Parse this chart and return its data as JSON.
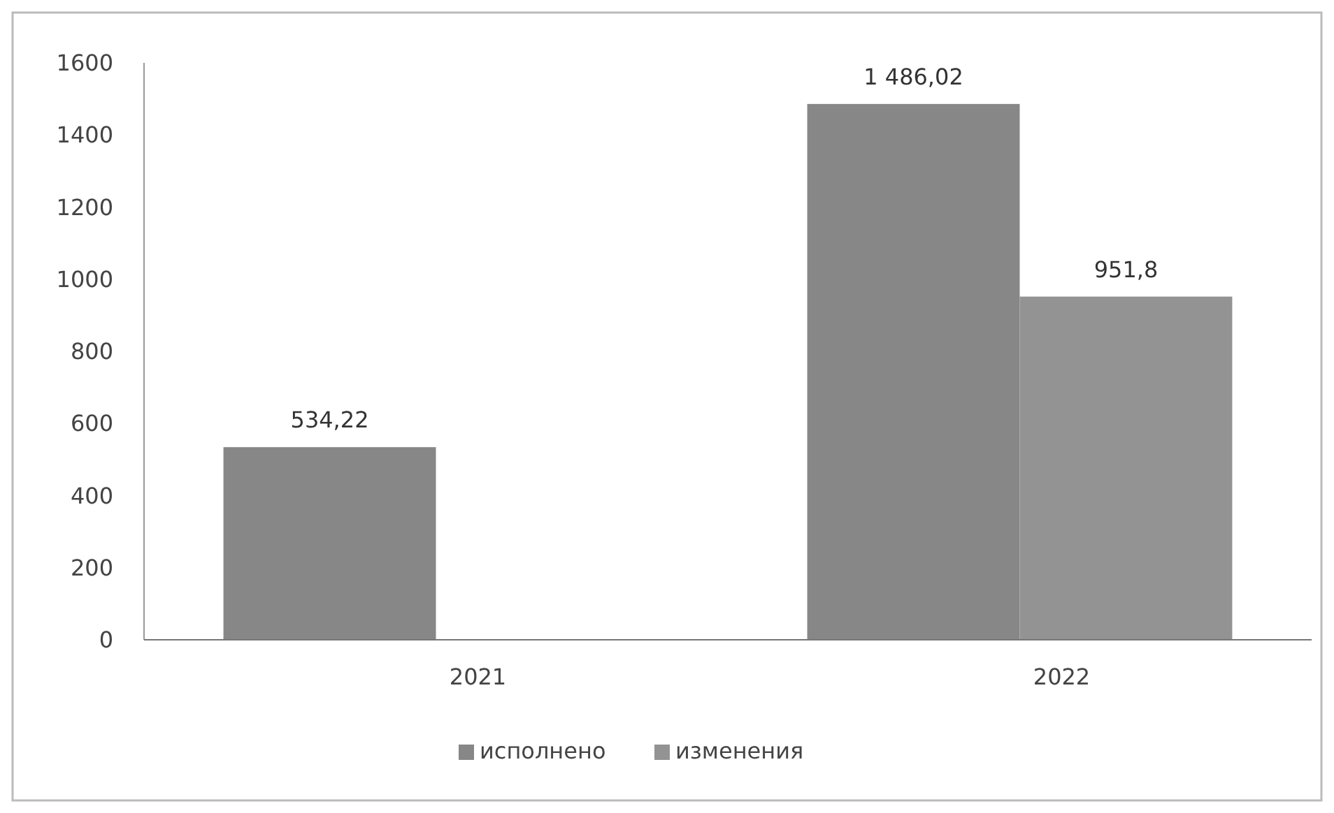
{
  "chart_data": {
    "type": "bar",
    "categories": [
      "2021",
      "2022"
    ],
    "series": [
      {
        "name": "исполнено",
        "color": "#878787",
        "values": [
          534.22,
          1486.02
        ],
        "value_labels": [
          "534,22",
          "1 486,02"
        ]
      },
      {
        "name": "изменения",
        "color": "#939393",
        "values": [
          null,
          951.8
        ],
        "value_labels": [
          null,
          "951,8"
        ]
      }
    ],
    "ylim": [
      0,
      1600
    ],
    "yticks": [
      0,
      200,
      400,
      600,
      800,
      1000,
      1200,
      1400,
      1600
    ],
    "grid": false,
    "legend": "bottom"
  }
}
